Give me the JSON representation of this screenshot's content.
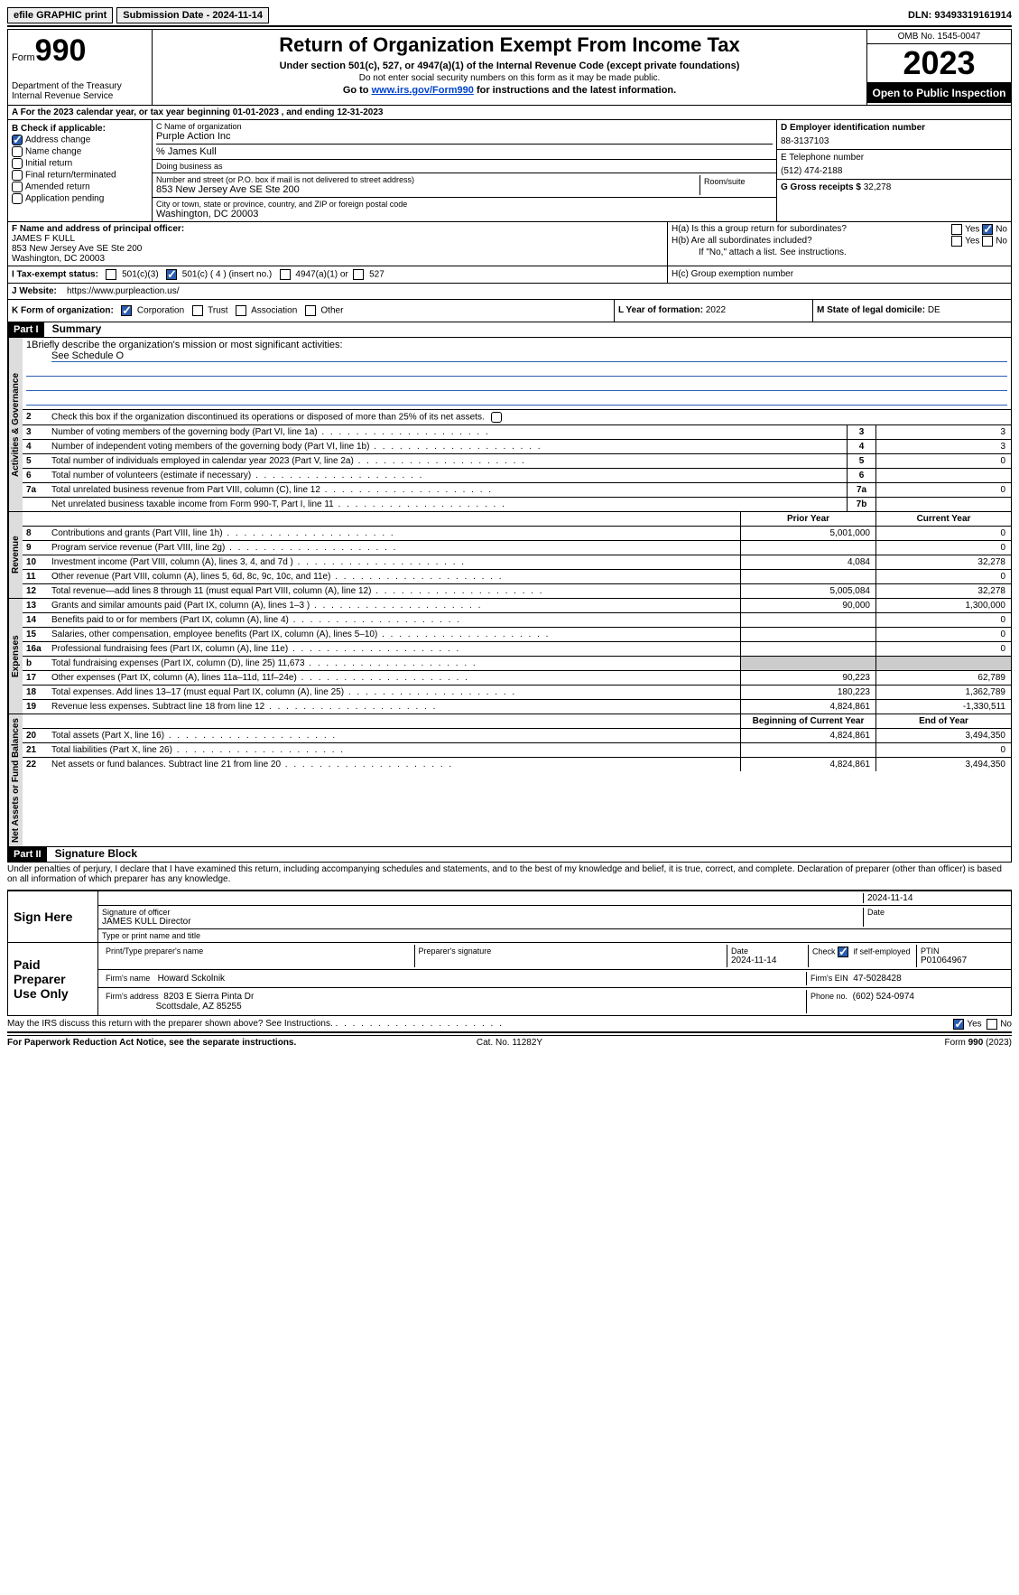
{
  "topbar": {
    "efile": "efile GRAPHIC print",
    "submission": "Submission Date - 2024-11-14",
    "dln": "DLN: 93493319161914"
  },
  "header": {
    "form_word": "Form",
    "form_num": "990",
    "dept": "Department of the Treasury Internal Revenue Service",
    "title": "Return of Organization Exempt From Income Tax",
    "subtitle": "Under section 501(c), 527, or 4947(a)(1) of the Internal Revenue Code (except private foundations)",
    "note": "Do not enter social security numbers on this form as it may be made public.",
    "goto_prefix": "Go to ",
    "goto_link": "www.irs.gov/Form990",
    "goto_suffix": " for instructions and the latest information.",
    "omb": "OMB No. 1545-0047",
    "year": "2023",
    "open": "Open to Public Inspection"
  },
  "row_a": "A For the 2023 calendar year, or tax year beginning 01-01-2023   , and ending 12-31-2023",
  "col_b": {
    "label": "B Check if applicable:",
    "items": [
      "Address change",
      "Name change",
      "Initial return",
      "Final return/terminated",
      "Amended return",
      "Application pending"
    ],
    "checked": [
      true,
      false,
      false,
      false,
      false,
      false
    ]
  },
  "col_c": {
    "name_lbl": "C Name of organization",
    "name": "Purple Action Inc",
    "care_of": "% James Kull",
    "dba_lbl": "Doing business as",
    "dba": "",
    "street_lbl": "Number and street (or P.O. box if mail is not delivered to street address)",
    "street": "853 New Jersey Ave SE Ste 200",
    "room_lbl": "Room/suite",
    "city_lbl": "City or town, state or province, country, and ZIP or foreign postal code",
    "city": "Washington, DC  20003"
  },
  "col_d": {
    "ein_lbl": "D Employer identification number",
    "ein": "88-3137103",
    "phone_lbl": "E Telephone number",
    "phone": "(512) 474-2188",
    "gross_lbl": "G Gross receipts $ ",
    "gross": "32,278"
  },
  "row_f": {
    "lbl": "F Name and address of principal officer:",
    "name": "JAMES F KULL",
    "addr1": "853 New Jersey Ave SE Ste 200",
    "addr2": "Washington, DC  20003"
  },
  "row_h": {
    "ha": "H(a)  Is this a group return for subordinates?",
    "hb": "H(b)  Are all subordinates included?",
    "hb_note": "If \"No,\" attach a list. See instructions.",
    "hc": "H(c)  Group exemption number"
  },
  "row_i": {
    "lbl": "I  Tax-exempt status:",
    "opts": [
      "501(c)(3)",
      "501(c) ( 4 ) (insert no.)",
      "4947(a)(1) or",
      "527"
    ]
  },
  "row_j": {
    "lbl": "J  Website:",
    "val": "https://www.purpleaction.us/"
  },
  "row_k": {
    "lbl": "K Form of organization:",
    "opts": [
      "Corporation",
      "Trust",
      "Association",
      "Other"
    ]
  },
  "row_l": {
    "lbl": "L Year of formation: ",
    "val": "2022"
  },
  "row_m": {
    "lbl": "M State of legal domicile: ",
    "val": "DE"
  },
  "part1": {
    "hdr": "Part I",
    "title": "Summary"
  },
  "tabs": {
    "ag": "Activities & Governance",
    "rev": "Revenue",
    "exp": "Expenses",
    "na": "Net Assets or Fund Balances"
  },
  "summary": {
    "line1": "Briefly describe the organization's mission or most significant activities:",
    "line1_val": "See Schedule O",
    "line2": "Check this box      if the organization discontinued its operations or disposed of more than 25% of its net assets.",
    "rows_ag": [
      {
        "n": "3",
        "d": "Number of voting members of the governing body (Part VI, line 1a)",
        "b": "3",
        "v": "3"
      },
      {
        "n": "4",
        "d": "Number of independent voting members of the governing body (Part VI, line 1b)",
        "b": "4",
        "v": "3"
      },
      {
        "n": "5",
        "d": "Total number of individuals employed in calendar year 2023 (Part V, line 2a)",
        "b": "5",
        "v": "0"
      },
      {
        "n": "6",
        "d": "Total number of volunteers (estimate if necessary)",
        "b": "6",
        "v": ""
      },
      {
        "n": "7a",
        "d": "Total unrelated business revenue from Part VIII, column (C), line 12",
        "b": "7a",
        "v": "0"
      },
      {
        "n": "",
        "d": "Net unrelated business taxable income from Form 990-T, Part I, line 11",
        "b": "7b",
        "v": ""
      }
    ],
    "hdr_py": "Prior Year",
    "hdr_cy": "Current Year",
    "rows_rev": [
      {
        "n": "8",
        "d": "Contributions and grants (Part VIII, line 1h)",
        "py": "5,001,000",
        "cy": "0"
      },
      {
        "n": "9",
        "d": "Program service revenue (Part VIII, line 2g)",
        "py": "",
        "cy": "0"
      },
      {
        "n": "10",
        "d": "Investment income (Part VIII, column (A), lines 3, 4, and 7d )",
        "py": "4,084",
        "cy": "32,278"
      },
      {
        "n": "11",
        "d": "Other revenue (Part VIII, column (A), lines 5, 6d, 8c, 9c, 10c, and 11e)",
        "py": "",
        "cy": "0"
      },
      {
        "n": "12",
        "d": "Total revenue—add lines 8 through 11 (must equal Part VIII, column (A), line 12)",
        "py": "5,005,084",
        "cy": "32,278"
      }
    ],
    "rows_exp": [
      {
        "n": "13",
        "d": "Grants and similar amounts paid (Part IX, column (A), lines 1–3 )",
        "py": "90,000",
        "cy": "1,300,000"
      },
      {
        "n": "14",
        "d": "Benefits paid to or for members (Part IX, column (A), line 4)",
        "py": "",
        "cy": "0"
      },
      {
        "n": "15",
        "d": "Salaries, other compensation, employee benefits (Part IX, column (A), lines 5–10)",
        "py": "",
        "cy": "0"
      },
      {
        "n": "16a",
        "d": "Professional fundraising fees (Part IX, column (A), line 11e)",
        "py": "",
        "cy": "0"
      },
      {
        "n": "b",
        "d": "Total fundraising expenses (Part IX, column (D), line 25) 11,673",
        "py": "shade",
        "cy": "shade"
      },
      {
        "n": "17",
        "d": "Other expenses (Part IX, column (A), lines 11a–11d, 11f–24e)",
        "py": "90,223",
        "cy": "62,789"
      },
      {
        "n": "18",
        "d": "Total expenses. Add lines 13–17 (must equal Part IX, column (A), line 25)",
        "py": "180,223",
        "cy": "1,362,789"
      },
      {
        "n": "19",
        "d": "Revenue less expenses. Subtract line 18 from line 12",
        "py": "4,824,861",
        "cy": "-1,330,511"
      }
    ],
    "hdr_bcy": "Beginning of Current Year",
    "hdr_eoy": "End of Year",
    "rows_na": [
      {
        "n": "20",
        "d": "Total assets (Part X, line 16)",
        "py": "4,824,861",
        "cy": "3,494,350"
      },
      {
        "n": "21",
        "d": "Total liabilities (Part X, line 26)",
        "py": "",
        "cy": "0"
      },
      {
        "n": "22",
        "d": "Net assets or fund balances. Subtract line 21 from line 20",
        "py": "4,824,861",
        "cy": "3,494,350"
      }
    ]
  },
  "part2": {
    "hdr": "Part II",
    "title": "Signature Block"
  },
  "sig": {
    "decl": "Under penalties of perjury, I declare that I have examined this return, including accompanying schedules and statements, and to the best of my knowledge and belief, it is true, correct, and complete. Declaration of preparer (other than officer) is based on all information of which preparer has any knowledge.",
    "sign_here": "Sign Here",
    "sig_officer": "Signature of officer",
    "officer": "JAMES KULL  Director",
    "type_name": "Type or print name and title",
    "date_lbl": "Date",
    "date": "2024-11-14",
    "paid": "Paid Preparer Use Only",
    "prep_name_lbl": "Print/Type preparer's name",
    "prep_sig_lbl": "Preparer's signature",
    "prep_date": "2024-11-14",
    "check_self": "Check         if self-employed",
    "ptin_lbl": "PTIN",
    "ptin": "P01064967",
    "firm_name_lbl": "Firm's name",
    "firm_name": "Howard Sckolnik",
    "firm_ein_lbl": "Firm's EIN",
    "firm_ein": "47-5028428",
    "firm_addr_lbl": "Firm's address",
    "firm_addr1": "8203 E Sierra Pinta Dr",
    "firm_addr2": "Scottsdale, AZ  85255",
    "firm_phone_lbl": "Phone no.",
    "firm_phone": "(602) 524-0974",
    "discuss": "May the IRS discuss this return with the preparer shown above? See Instructions."
  },
  "footer": {
    "l": "For Paperwork Reduction Act Notice, see the separate instructions.",
    "c": "Cat. No. 11282Y",
    "r": "Form 990 (2023)"
  }
}
